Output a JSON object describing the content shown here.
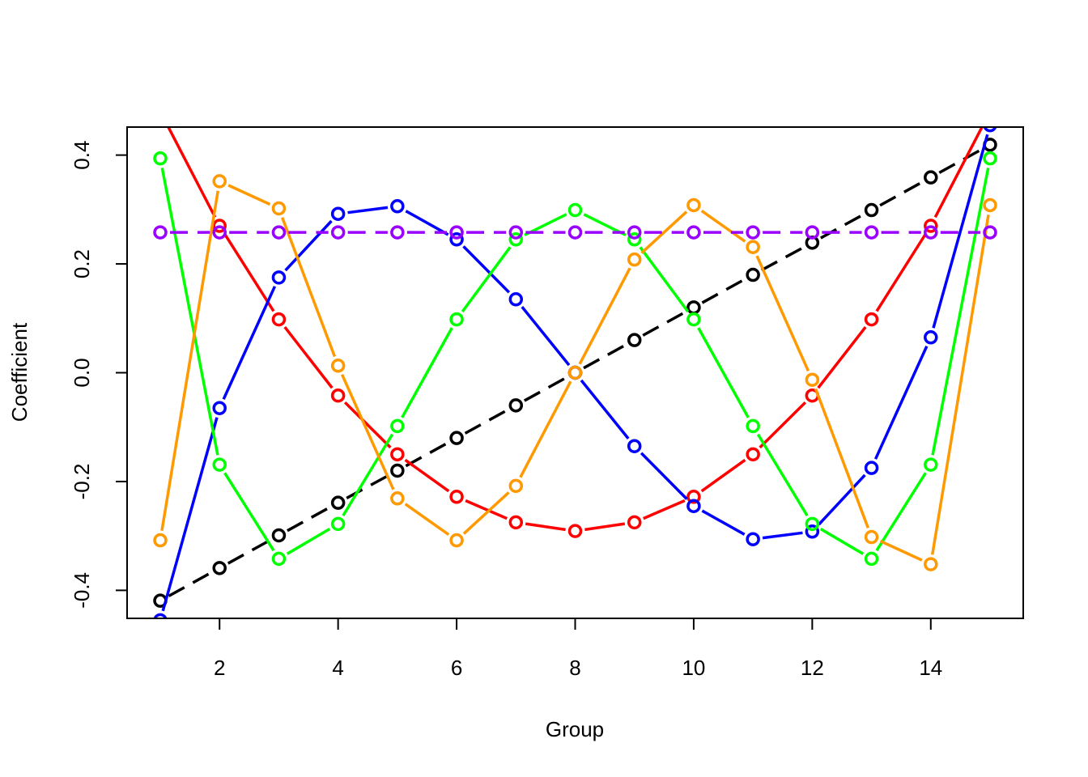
{
  "chart_data": {
    "type": "line",
    "title": "",
    "xlabel": "Group",
    "ylabel": "Coefficient",
    "xlim": [
      0.44,
      15.56
    ],
    "ylim": [
      -0.4515,
      0.4515
    ],
    "xticks": [
      "2",
      "4",
      "6",
      "8",
      "10",
      "12",
      "14"
    ],
    "yticks": [
      "-0.4",
      "-0.2",
      "0.0",
      "0.2",
      "0.4"
    ],
    "grid": false,
    "legend": "none",
    "x": [
      1,
      2,
      3,
      4,
      5,
      6,
      7,
      8,
      9,
      10,
      11,
      12,
      13,
      14,
      15
    ],
    "series": [
      {
        "color": "#000000",
        "dashed": true,
        "values": [
          -0.419,
          -0.359,
          -0.299,
          -0.239,
          -0.18,
          -0.12,
          -0.06,
          0.0,
          0.06,
          0.12,
          0.18,
          0.239,
          0.299,
          0.359,
          0.419
        ]
      },
      {
        "color": "#ff0000",
        "dashed": false,
        "values": [
          0.48,
          0.27,
          0.098,
          -0.042,
          -0.15,
          -0.228,
          -0.275,
          -0.291,
          -0.275,
          -0.228,
          -0.15,
          -0.042,
          0.098,
          0.27,
          0.48
        ]
      },
      {
        "color": "#0000ff",
        "dashed": false,
        "values": [
          -0.455,
          -0.065,
          0.175,
          0.292,
          0.306,
          0.245,
          0.135,
          0.0,
          -0.135,
          -0.245,
          -0.306,
          -0.292,
          -0.175,
          0.065,
          0.455
        ]
      },
      {
        "color": "#00ff00",
        "dashed": false,
        "values": [
          0.394,
          -0.169,
          -0.342,
          -0.278,
          -0.098,
          0.098,
          0.245,
          0.299,
          0.245,
          0.098,
          -0.098,
          -0.278,
          -0.342,
          -0.169,
          0.394
        ]
      },
      {
        "color": "#ff9900",
        "dashed": false,
        "values": [
          -0.308,
          0.352,
          0.302,
          0.013,
          -0.231,
          -0.308,
          -0.208,
          0.0,
          0.208,
          0.308,
          0.231,
          -0.013,
          -0.302,
          -0.352,
          0.308
        ]
      },
      {
        "color": "#9a00ff",
        "dashed": true,
        "values": [
          0.258,
          0.258,
          0.258,
          0.258,
          0.258,
          0.258,
          0.258,
          0.258,
          0.258,
          0.258,
          0.258,
          0.258,
          0.258,
          0.258,
          0.258
        ]
      }
    ]
  }
}
